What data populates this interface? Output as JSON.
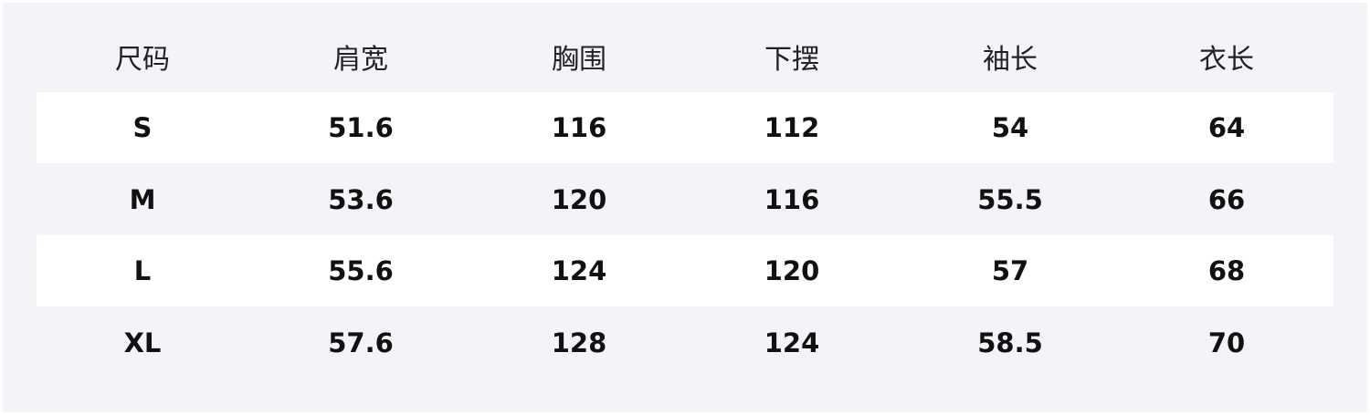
{
  "table": {
    "headers": [
      "尺码",
      "肩宽",
      "胸围",
      "下摆",
      "袖长",
      "衣长"
    ],
    "rows": [
      [
        "S",
        "51.6",
        "116",
        "112",
        "54",
        "64"
      ],
      [
        "M",
        "53.6",
        "120",
        "116",
        "55.5",
        "66"
      ],
      [
        "L",
        "55.6",
        "124",
        "120",
        "57",
        "68"
      ],
      [
        "XL",
        "57.6",
        "128",
        "124",
        "58.5",
        "70"
      ]
    ]
  },
  "colors": {
    "background": "#f3f3f8",
    "stripe": "#ffffff",
    "text": "#111111"
  }
}
